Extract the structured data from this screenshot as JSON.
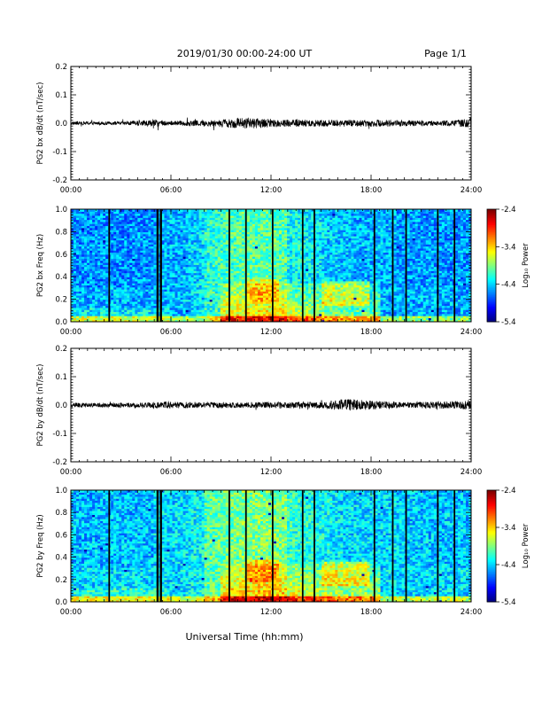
{
  "header": {
    "title": "2019/01/30  00:00-24:00 UT",
    "page": "Page 1/1"
  },
  "chart_data": [
    {
      "type": "line",
      "title": "",
      "ylabel": "PG2 bx dB/dt (nT/sec)",
      "xlabel": "",
      "xlim": [
        0,
        24
      ],
      "ylim": [
        -0.2,
        0.2
      ],
      "x_ticks": [
        "00:00",
        "06:00",
        "12:00",
        "18:00",
        "24:00"
      ],
      "y_ticks": [
        "0.2",
        "0.1",
        "0.0",
        "-0.1",
        "-0.2"
      ],
      "y_tick_values": [
        0.2,
        0.1,
        0.0,
        -0.1,
        -0.2
      ],
      "noise_envelope": [
        {
          "t": 0,
          "amp": 0.006
        },
        {
          "t": 3,
          "amp": 0.006
        },
        {
          "t": 5.2,
          "amp": 0.012
        },
        {
          "t": 6,
          "amp": 0.008
        },
        {
          "t": 8.5,
          "amp": 0.012
        },
        {
          "t": 10.5,
          "amp": 0.02
        },
        {
          "t": 12,
          "amp": 0.014
        },
        {
          "t": 16,
          "amp": 0.012
        },
        {
          "t": 19,
          "amp": 0.012
        },
        {
          "t": 22,
          "amp": 0.008
        },
        {
          "t": 23.9,
          "amp": 0.015
        },
        {
          "t": 24,
          "amp": 0.03
        }
      ]
    },
    {
      "type": "heatmap",
      "title": "",
      "ylabel": "PG2 bx Freq (Hz)",
      "xlabel": "",
      "xlim": [
        0,
        24
      ],
      "ylim": [
        0,
        1.0
      ],
      "x_ticks": [
        "00:00",
        "06:00",
        "12:00",
        "18:00",
        "24:00"
      ],
      "y_ticks": [
        "1.0",
        "0.8",
        "0.6",
        "0.4",
        "0.2",
        "0.0"
      ],
      "y_tick_values": [
        1.0,
        0.8,
        0.6,
        0.4,
        0.2,
        0.0
      ],
      "colorbar": {
        "label": "Log₁₀ Power",
        "ticks": [
          "-2.4",
          "-3.4",
          "-4.4",
          "-5.4"
        ],
        "tick_values": [
          -2.4,
          -3.4,
          -4.4,
          -5.4
        ],
        "range": [
          -5.4,
          -2.4
        ]
      },
      "data_gaps_hours": [
        2.3,
        5.2,
        5.4,
        9.5,
        10.5,
        12.1,
        13.9,
        14.6,
        18.2,
        19.3,
        20.1,
        22.0,
        23.0
      ]
    },
    {
      "type": "line",
      "title": "",
      "ylabel": "PG2 by dB/dt (nT/sec)",
      "xlabel": "",
      "xlim": [
        0,
        24
      ],
      "ylim": [
        -0.2,
        0.2
      ],
      "x_ticks": [
        "00:00",
        "06:00",
        "12:00",
        "18:00",
        "24:00"
      ],
      "y_ticks": [
        "0.2",
        "0.1",
        "0.0",
        "-0.1",
        "-0.2"
      ],
      "y_tick_values": [
        0.2,
        0.1,
        0.0,
        -0.1,
        -0.2
      ],
      "noise_envelope": [
        {
          "t": 0,
          "amp": 0.008
        },
        {
          "t": 4,
          "amp": 0.008
        },
        {
          "t": 5.5,
          "amp": 0.012
        },
        {
          "t": 10,
          "amp": 0.01
        },
        {
          "t": 15,
          "amp": 0.012
        },
        {
          "t": 16.5,
          "amp": 0.022
        },
        {
          "t": 18,
          "amp": 0.016
        },
        {
          "t": 20,
          "amp": 0.01
        },
        {
          "t": 23.8,
          "amp": 0.015
        },
        {
          "t": 24,
          "amp": 0.04
        }
      ]
    },
    {
      "type": "heatmap",
      "title": "",
      "ylabel": "PG2 by Freq (Hz)",
      "xlabel": "Universal Time (hh:mm)",
      "xlim": [
        0,
        24
      ],
      "ylim": [
        0,
        1.0
      ],
      "x_ticks": [
        "00:00",
        "06:00",
        "12:00",
        "18:00",
        "24:00"
      ],
      "y_ticks": [
        "1.0",
        "0.8",
        "0.6",
        "0.4",
        "0.2",
        "0.0"
      ],
      "y_tick_values": [
        1.0,
        0.8,
        0.6,
        0.4,
        0.2,
        0.0
      ],
      "colorbar": {
        "label": "Log₁₀ Power",
        "ticks": [
          "-2.4",
          "-3.4",
          "-4.4",
          "-5.4"
        ],
        "tick_values": [
          -2.4,
          -3.4,
          -4.4,
          -5.4
        ],
        "range": [
          -5.4,
          -2.4
        ]
      },
      "data_gaps_hours": [
        2.3,
        5.2,
        5.4,
        9.5,
        10.5,
        12.1,
        13.9,
        14.6,
        18.2,
        19.3,
        20.1,
        22.0,
        23.0
      ]
    }
  ]
}
